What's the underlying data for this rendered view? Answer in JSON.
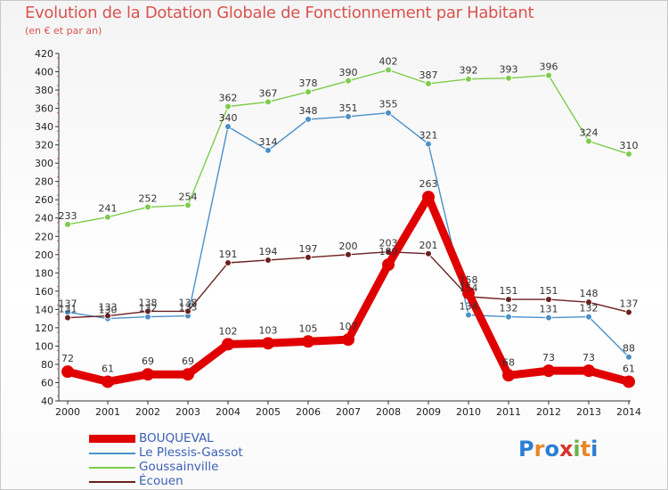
{
  "header": {
    "title": "Evolution de la Dotation Globale de Fonctionnement par Habitant",
    "subtitle": "(en € et par an)"
  },
  "logo": {
    "text": "Proxiti",
    "letters": [
      "P",
      "r",
      "o",
      "x",
      "i",
      "t",
      "i"
    ],
    "colors": [
      "#2a7fd4",
      "#e8862a",
      "#2a7fd4",
      "#d4352a",
      "#6ab24a",
      "#e8862a",
      "#2a7fd4"
    ]
  },
  "chart_data": {
    "type": "line",
    "title": "Evolution de la Dotation Globale de Fonctionnement par Habitant",
    "subtitle": "(en € et par an)",
    "xlabel": "",
    "ylabel": "",
    "ylim": [
      40,
      420
    ],
    "ytick_step": 20,
    "grid": false,
    "legend_position": "bottom-left",
    "categories": [
      "2000",
      "2001",
      "2002",
      "2003",
      "2004",
      "2005",
      "2006",
      "2007",
      "2008",
      "2009",
      "2010",
      "2011",
      "2012",
      "2013",
      "2014"
    ],
    "series": [
      {
        "name": "BOUQUEVAL",
        "color": "#e00000",
        "thick": true,
        "values": [
          72,
          61,
          69,
          69,
          102,
          103,
          105,
          107,
          189,
          263,
          158,
          68,
          73,
          73,
          61
        ],
        "labels": [
          "72",
          "61",
          "69",
          "69",
          "102",
          "103",
          "105",
          "107",
          "189",
          "263",
          "158",
          "68",
          "73",
          "73",
          "61"
        ]
      },
      {
        "name": "Le Plessis-Gassot",
        "color": "#4a90c8",
        "thick": false,
        "values": [
          137,
          130,
          132,
          133,
          340,
          314,
          348,
          351,
          355,
          321,
          134,
          132,
          131,
          132,
          88
        ],
        "labels": [
          "137",
          "130",
          "132",
          "133",
          "340",
          "314",
          "348",
          "351",
          "355",
          "321",
          "134",
          "132",
          "131",
          "132",
          "88"
        ]
      },
      {
        "name": "Goussainville",
        "color": "#7dcc4a",
        "thick": false,
        "values": [
          233,
          241,
          252,
          254,
          362,
          367,
          378,
          390,
          402,
          387,
          392,
          393,
          396,
          324,
          310
        ],
        "labels": [
          "233",
          "241",
          "252",
          "254",
          "362",
          "367",
          "378",
          "390",
          "402",
          "387",
          "392",
          "393",
          "396",
          "324",
          "310"
        ]
      },
      {
        "name": "Écouen",
        "color": "#6b1f1f",
        "thick": false,
        "values": [
          131,
          133,
          138,
          138,
          191,
          194,
          197,
          200,
          203,
          201,
          154,
          151,
          151,
          148,
          137
        ],
        "labels": [
          "131",
          "133",
          "138",
          "138",
          "191",
          "194",
          "197",
          "200",
          "203",
          "201",
          "154",
          "151",
          "151",
          "148",
          "137"
        ]
      }
    ]
  }
}
